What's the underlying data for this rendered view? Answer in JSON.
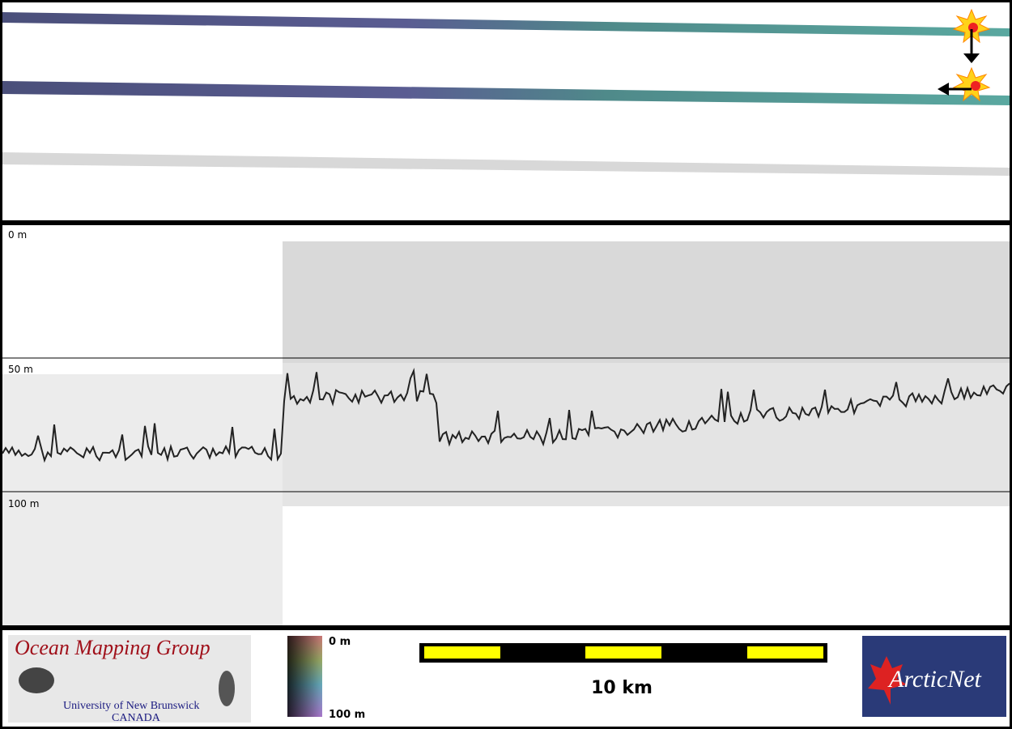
{
  "profile": {
    "depth_labels": [
      "0 m",
      "50 m",
      "100 m"
    ]
  },
  "footer": {
    "logo_title": "Ocean Mapping Group",
    "logo_university": "University of New Brunswick",
    "logo_country": "CANADA",
    "colorbar_top": "0 m",
    "colorbar_bottom": "100 m",
    "scale_label": "10 km",
    "partner_logo": "ArcticNet"
  }
}
